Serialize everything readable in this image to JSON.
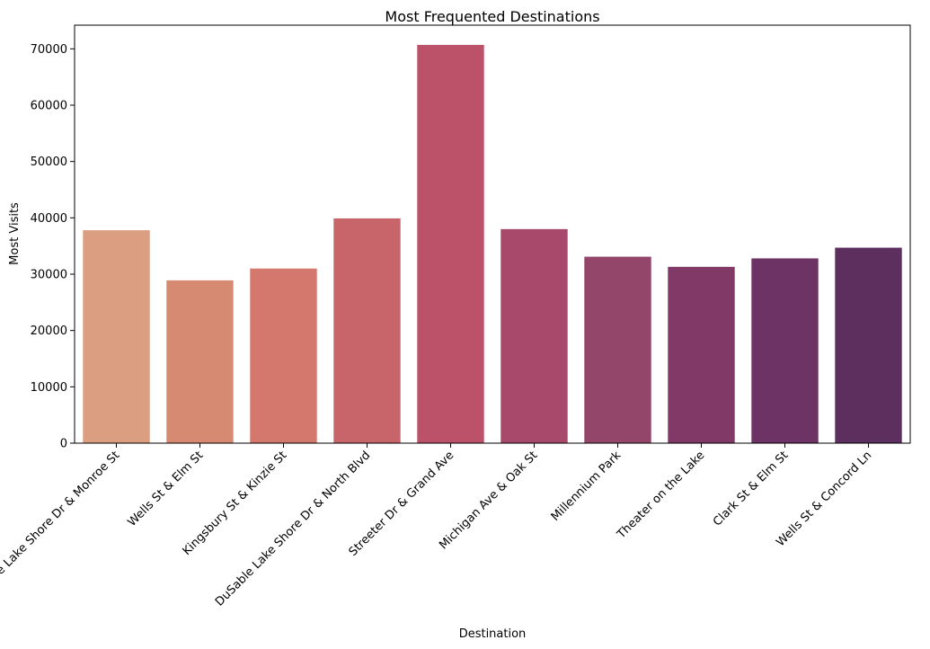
{
  "chart_data": {
    "type": "bar",
    "title": "Most Frequented Destinations",
    "xlabel": "Destination",
    "ylabel": "Most Visits",
    "categories": [
      "DuSable Lake Shore Dr & Monroe St",
      "Wells St & Elm St",
      "Kingsbury St & Kinzie St",
      "DuSable Lake Shore Dr & North Blvd",
      "Streeter Dr & Grand Ave",
      "Michigan Ave & Oak St",
      "Millennium Park",
      "Theater on the Lake",
      "Clark St & Elm St",
      "Wells St & Concord Ln"
    ],
    "values": [
      37800,
      28900,
      31000,
      39900,
      70700,
      38000,
      33100,
      31300,
      32800,
      34700
    ],
    "colors": [
      "#dc9e80",
      "#d78a72",
      "#d4776c",
      "#c8656b",
      "#bc526a",
      "#a8496b",
      "#934669",
      "#813968",
      "#6d3364",
      "#5c2f5f"
    ],
    "yticks": [
      0,
      10000,
      20000,
      30000,
      40000,
      50000,
      60000,
      70000
    ],
    "ylim": [
      0,
      74200
    ],
    "grid": false,
    "legend": "none"
  }
}
